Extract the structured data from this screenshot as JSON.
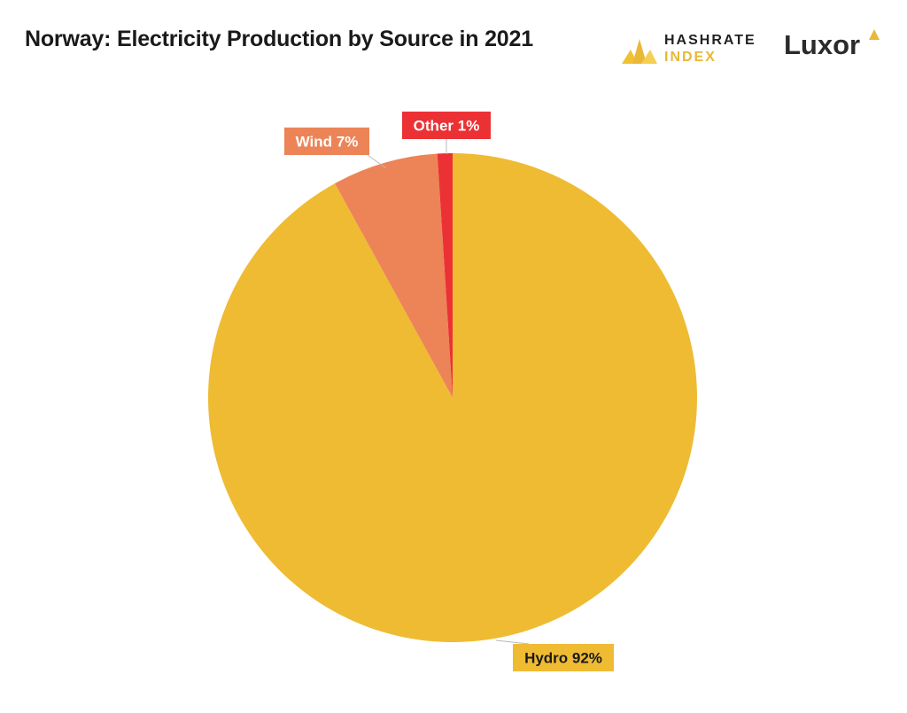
{
  "header": {
    "title": "Norway: Electricity Production by Source in 2021"
  },
  "logos": {
    "hashrate_line1": "HASHRATE",
    "hashrate_line2": "INDEX",
    "hashrate_icon": "hashrate-index-logo-icon",
    "luxor_text": "Luxor",
    "luxor_icon": "luxor-logo-icon"
  },
  "chart_data": {
    "type": "pie",
    "title": "Norway: Electricity Production by Source in 2021",
    "categories": [
      "Hydro",
      "Wind",
      "Other"
    ],
    "values": [
      92,
      7,
      1
    ],
    "unit": "%",
    "colors": [
      "#efbb33",
      "#ec8457",
      "#ec3135"
    ],
    "label_text_colors": [
      "#1a1a1a",
      "#ffffff",
      "#ffffff"
    ],
    "start_angle_deg": 0,
    "direction": "clockwise",
    "legend": "none"
  }
}
